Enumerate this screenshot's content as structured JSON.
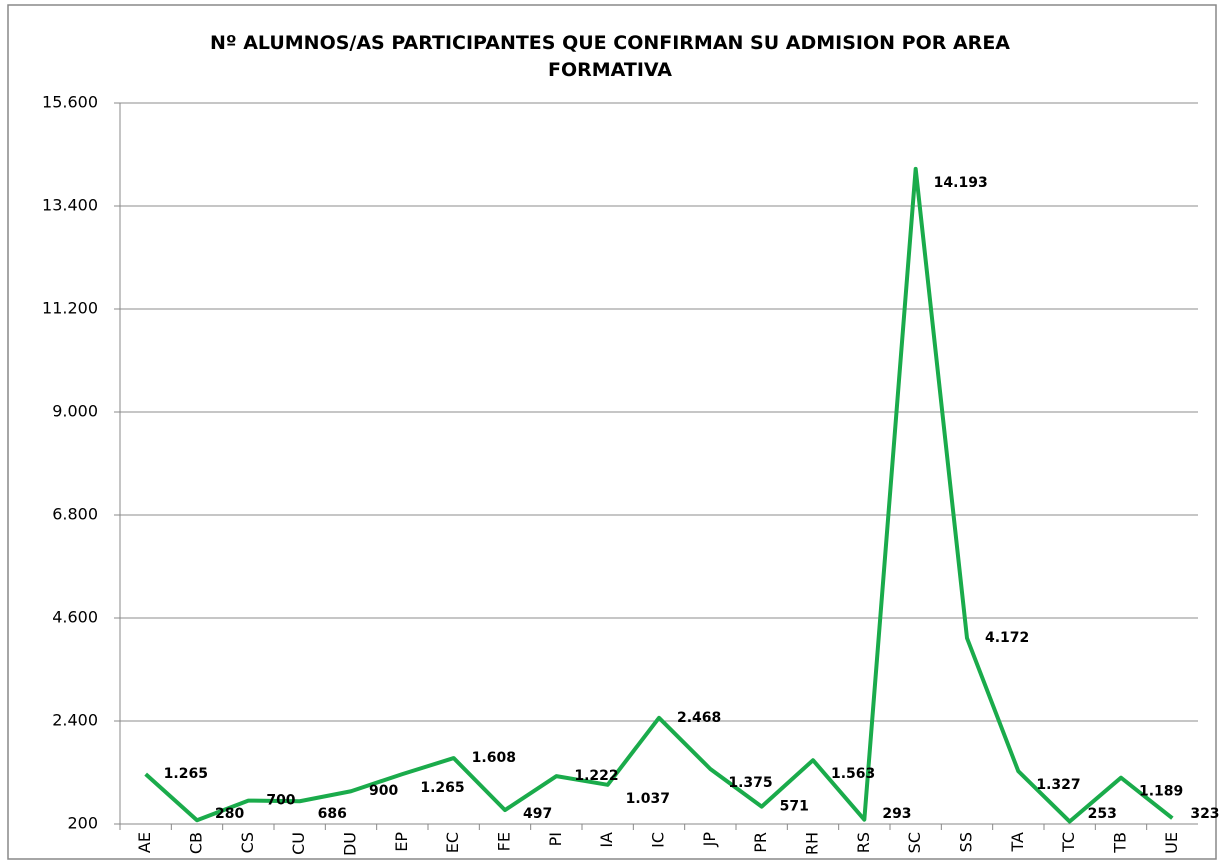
{
  "chart_data": {
    "type": "line",
    "title": "Nº ALUMNOS/AS PARTICIPANTES QUE CONFIRMAN SU ADMISION POR AREA FORMATIVA",
    "categories": [
      "AE",
      "CB",
      "CS",
      "CU",
      "DU",
      "EP",
      "EC",
      "FE",
      "PI",
      "IA",
      "IC",
      "JP",
      "PR",
      "RH",
      "RS",
      "SC",
      "SS",
      "TA",
      "TC",
      "TB",
      "UE"
    ],
    "series": [
      {
        "name": null,
        "color": "#1aab4b",
        "values": [
          1265,
          280,
          700,
          686,
          900,
          1265,
          1608,
          497,
          1222,
          1037,
          2468,
          1375,
          571,
          1563,
          293,
          14193,
          4172,
          1327,
          253,
          1189,
          323
        ],
        "value_labels": [
          "1.265",
          "280",
          "700",
          "686",
          "900",
          "1.265",
          "1.608",
          "497",
          "1.222",
          "1.037",
          "2.468",
          "1.375",
          "571",
          "1.563",
          "293",
          "14.193",
          "4.172",
          "1.327",
          "253",
          "1.189",
          "323"
        ]
      }
    ],
    "ylim": [
      200,
      15600
    ],
    "yticks": [
      200,
      {
        "value": 2400,
        "label": "2.400"
      },
      {
        "value": 4600,
        "label": "4.600"
      },
      {
        "value": 6800,
        "label": "6.800"
      },
      {
        "value": 9000,
        "label": "9.000"
      },
      {
        "value": 11200,
        "label": "11.200"
      },
      {
        "value": 13400,
        "label": "13.400"
      },
      {
        "value": 15600,
        "label": "15.600"
      }
    ],
    "grid": true
  }
}
